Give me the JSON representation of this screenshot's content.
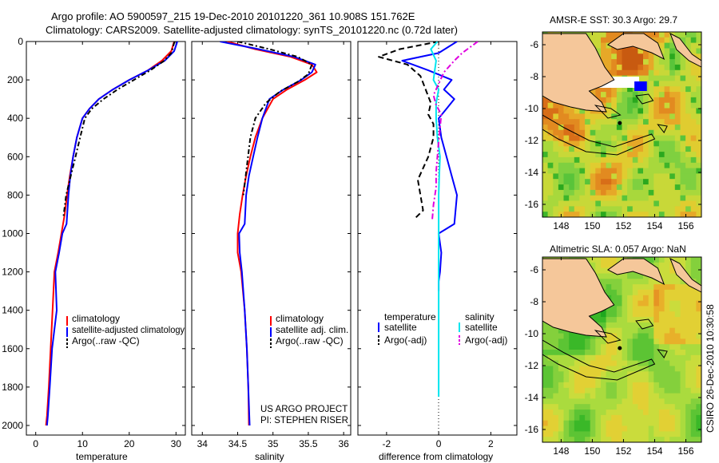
{
  "figure": {
    "title_line1": "Argo profile: AO 5900597_215 19-Dec-2010 20101220_361 10.908S 151.762E",
    "title_line2": "Climatology: CARS2009. Satellite-adjusted climatology: synTS_20101220.nc (0.72d later)",
    "side_stamp": "CSIRO 26-Dec-2010 10:30:58",
    "project_line1": "US ARGO PROJECT",
    "project_line2": "PI: STEPHEN RISER"
  },
  "colors": {
    "climatology": "#ff0000",
    "satellite": "#0000ff",
    "argo": "#000000",
    "satellite_salinity": "#00e5ee",
    "argo_salinity_adj": "#e000e0",
    "land": "#f5c79a",
    "no_data": "#ffffff"
  },
  "chart_data": [
    {
      "type": "line",
      "id": "temperature",
      "xlabel": "temperature",
      "ylabel": "",
      "xlim": [
        -2,
        32
      ],
      "ylim": [
        2050,
        0
      ],
      "xticks": [
        "0",
        "10",
        "20",
        "30"
      ],
      "xtick_values": [
        0,
        10,
        20,
        30
      ],
      "yticks": [
        "0",
        "200",
        "400",
        "600",
        "800",
        "1000",
        "1200",
        "1400",
        "1600",
        "1800",
        "2000"
      ],
      "ytick_values": [
        0,
        200,
        400,
        600,
        800,
        1000,
        1200,
        1400,
        1600,
        1800,
        2000
      ],
      "legend": [
        "climatology",
        "satellite-adjusted climatology",
        "Argo(..raw -QC)"
      ],
      "series": [
        {
          "name": "climatology",
          "color": "#ff0000",
          "dash": "none",
          "x": [
            29.6,
            29.0,
            27.0,
            24.0,
            20.0,
            16.5,
            13.5,
            11.5,
            10.0,
            8.8,
            8.0,
            7.3,
            6.7,
            6.2,
            5.5,
            4.8,
            4.0,
            3.6,
            3.2,
            2.8,
            2.4,
            2.2
          ],
          "y": [
            0,
            50,
            100,
            150,
            200,
            250,
            300,
            350,
            400,
            500,
            600,
            700,
            800,
            900,
            1000,
            1100,
            1200,
            1400,
            1600,
            1800,
            1950,
            2000
          ]
        },
        {
          "name": "satellite-adjusted climatology",
          "color": "#0000ff",
          "dash": "none",
          "x": [
            30.3,
            29.6,
            27.6,
            24.0,
            20.0,
            16.5,
            13.5,
            11.5,
            10.0,
            8.8,
            8.0,
            7.4,
            7.0,
            6.6,
            5.7,
            5.0,
            4.2,
            4.5,
            3.5,
            3.0,
            2.6,
            2.4
          ],
          "y": [
            0,
            50,
            100,
            150,
            200,
            250,
            300,
            350,
            400,
            500,
            600,
            700,
            800,
            950,
            1000,
            1100,
            1200,
            1400,
            1600,
            1800,
            1950,
            2000
          ]
        },
        {
          "name": "Argo(..raw -QC)",
          "color": "#000000",
          "dash": "6,3,2,3",
          "x": [
            29.7,
            29.0,
            27.5,
            24.5,
            21.0,
            17.5,
            14.5,
            12.0,
            10.5,
            9.5,
            8.5,
            7.5,
            6.5,
            5.9
          ],
          "y": [
            0,
            60,
            100,
            150,
            200,
            250,
            300,
            350,
            400,
            500,
            600,
            700,
            800,
            920
          ]
        }
      ]
    },
    {
      "type": "line",
      "id": "salinity",
      "xlabel": "salinity",
      "ylabel": "",
      "xlim": [
        33.85,
        36.1
      ],
      "ylim": [
        2050,
        0
      ],
      "xticks": [
        "34",
        "34.5",
        "35",
        "35.5",
        "36"
      ],
      "xtick_values": [
        34,
        34.5,
        35,
        35.5,
        36
      ],
      "legend": [
        "climatology",
        "satellite adj. clim.",
        "Argo(..raw -QC)"
      ],
      "series": [
        {
          "name": "climatology",
          "color": "#ff0000",
          "dash": "none",
          "x": [
            34.35,
            34.75,
            35.25,
            35.55,
            35.62,
            35.45,
            35.2,
            35.0,
            34.85,
            34.75,
            34.68,
            34.62,
            34.57,
            34.53,
            34.5,
            34.5,
            34.55,
            34.6,
            34.63,
            34.65,
            34.66
          ],
          "y": [
            0,
            40,
            80,
            120,
            160,
            200,
            250,
            300,
            400,
            500,
            600,
            700,
            800,
            900,
            1000,
            1100,
            1200,
            1400,
            1600,
            1800,
            2000
          ]
        },
        {
          "name": "satellite adj. clim.",
          "color": "#0000ff",
          "dash": "none",
          "x": [
            34.25,
            34.8,
            35.3,
            35.6,
            35.55,
            35.4,
            35.15,
            34.95,
            34.85,
            34.78,
            34.72,
            34.66,
            34.62,
            34.6,
            34.52,
            34.53,
            34.56,
            34.6,
            34.63,
            34.65,
            34.67
          ],
          "y": [
            0,
            40,
            80,
            120,
            160,
            200,
            250,
            300,
            400,
            500,
            600,
            700,
            800,
            950,
            1000,
            1100,
            1200,
            1400,
            1600,
            1800,
            2000
          ]
        },
        {
          "name": "Argo(..raw -QC)",
          "color": "#000000",
          "dash": "6,3,2,3",
          "x": [
            34.5,
            34.95,
            35.35,
            35.55,
            35.5,
            35.35,
            35.1,
            34.9,
            34.75,
            34.68,
            34.63,
            34.58
          ],
          "y": [
            0,
            40,
            80,
            120,
            170,
            210,
            260,
            320,
            400,
            500,
            650,
            800
          ]
        }
      ]
    },
    {
      "type": "line",
      "id": "difference",
      "xlabel": "difference from climatology",
      "ylabel": "",
      "xlim": [
        -3.1,
        3.0
      ],
      "ylim": [
        2050,
        0
      ],
      "xticks": [
        "-2",
        "0",
        "2"
      ],
      "xtick_values": [
        -2,
        0,
        2
      ],
      "legend_left_title": "temperature",
      "legend_right_title": "salinity",
      "legend_left": [
        "satellite",
        "Argo(-adj)"
      ],
      "legend_right": [
        "satellite",
        "Argo(-adj)"
      ],
      "series": [
        {
          "name": "temperature satellite",
          "color": "#0000ff",
          "dash": "none",
          "x": [
            0.7,
            0.0,
            -1.4,
            -0.4,
            0.5,
            0.2,
            0.6,
            0.3,
            0.0,
            0.1,
            0.3,
            0.5,
            0.7,
            0.6,
            0.0,
            0.1,
            0.05,
            0.0,
            0.0
          ],
          "y": [
            0,
            60,
            100,
            150,
            200,
            250,
            300,
            350,
            400,
            500,
            600,
            700,
            800,
            950,
            1000,
            1100,
            1200,
            1250,
            1300
          ]
        },
        {
          "name": "temperature Argo(-adj)",
          "color": "#000000",
          "dash": "7,4",
          "x": [
            0.0,
            -1.5,
            -2.3,
            -1.2,
            -0.7,
            -0.5,
            -0.3,
            -0.4,
            -0.2,
            -0.2,
            -0.4,
            -0.6,
            -0.8,
            -0.7,
            -0.6,
            -0.9
          ],
          "y": [
            0,
            40,
            80,
            120,
            180,
            250,
            320,
            380,
            430,
            500,
            600,
            660,
            720,
            800,
            880,
            920
          ]
        },
        {
          "name": "salinity satellite",
          "color": "#00e5ee",
          "dash": "none",
          "x": [
            -0.05,
            -0.3,
            -0.1,
            -0.15,
            -0.2,
            0.0,
            -0.1,
            -0.1,
            -0.05,
            0.05,
            0.02,
            0.0,
            0.0,
            0.0,
            0.0,
            0.0,
            0.0
          ],
          "y": [
            0,
            40,
            100,
            150,
            200,
            250,
            320,
            400,
            500,
            600,
            700,
            800,
            900,
            1000,
            1300,
            1600,
            1850
          ]
        },
        {
          "name": "salinity Argo(-adj)",
          "color": "#e000e0",
          "dash": "7,3,2,3",
          "x": [
            1.5,
            0.9,
            0.6,
            0.2,
            0.0,
            -0.2,
            -0.1,
            0.1,
            0.05,
            0.0,
            -0.05,
            -0.1,
            -0.1,
            -0.2,
            -0.25
          ],
          "y": [
            0,
            60,
            100,
            160,
            220,
            280,
            330,
            380,
            450,
            520,
            600,
            680,
            760,
            850,
            930
          ]
        }
      ]
    },
    {
      "type": "heatmap",
      "id": "sst_map",
      "title": "AMSR-E SST: 30.3 Argo: 29.7",
      "xlim": [
        146.8,
        157.0
      ],
      "ylim": [
        -16.8,
        -5.2
      ],
      "xticks": [
        "148",
        "150",
        "152",
        "154",
        "156"
      ],
      "xtick_values": [
        148,
        150,
        152,
        154,
        156
      ],
      "yticks": [
        "-6",
        "-8",
        "-10",
        "-12",
        "-14",
        "-16"
      ],
      "ytick_values": [
        -6,
        -8,
        -10,
        -12,
        -14,
        -16
      ],
      "colors": [
        "#2aa81e",
        "#3db52a",
        "#59c43a",
        "#7fd040",
        "#a8d83c",
        "#c8d838",
        "#e0cc30",
        "#e6a828",
        "#e28a20",
        "#d86e18",
        "#c85a10"
      ],
      "argo_position": {
        "lon": 151.762,
        "lat": -10.908
      }
    },
    {
      "type": "heatmap",
      "id": "sla_map",
      "title": "Altimetric SLA: 0.057 Argo: NaN",
      "xlim": [
        146.8,
        157.0
      ],
      "ylim": [
        -16.8,
        -5.2
      ],
      "xticks": [
        "148",
        "150",
        "152",
        "154",
        "156"
      ],
      "xtick_values": [
        148,
        150,
        152,
        154,
        156
      ],
      "yticks": [
        "-6",
        "-8",
        "-10",
        "-12",
        "-14",
        "-16"
      ],
      "ytick_values": [
        -6,
        -8,
        -10,
        -12,
        -14,
        -16
      ],
      "colors": [
        "#1fa81e",
        "#3ab828",
        "#5cc434",
        "#84d03c",
        "#aadb3e",
        "#cadc3c",
        "#e2d034",
        "#e8b02a",
        "#e69424"
      ],
      "argo_position": {
        "lon": 151.762,
        "lat": -10.908
      }
    }
  ]
}
